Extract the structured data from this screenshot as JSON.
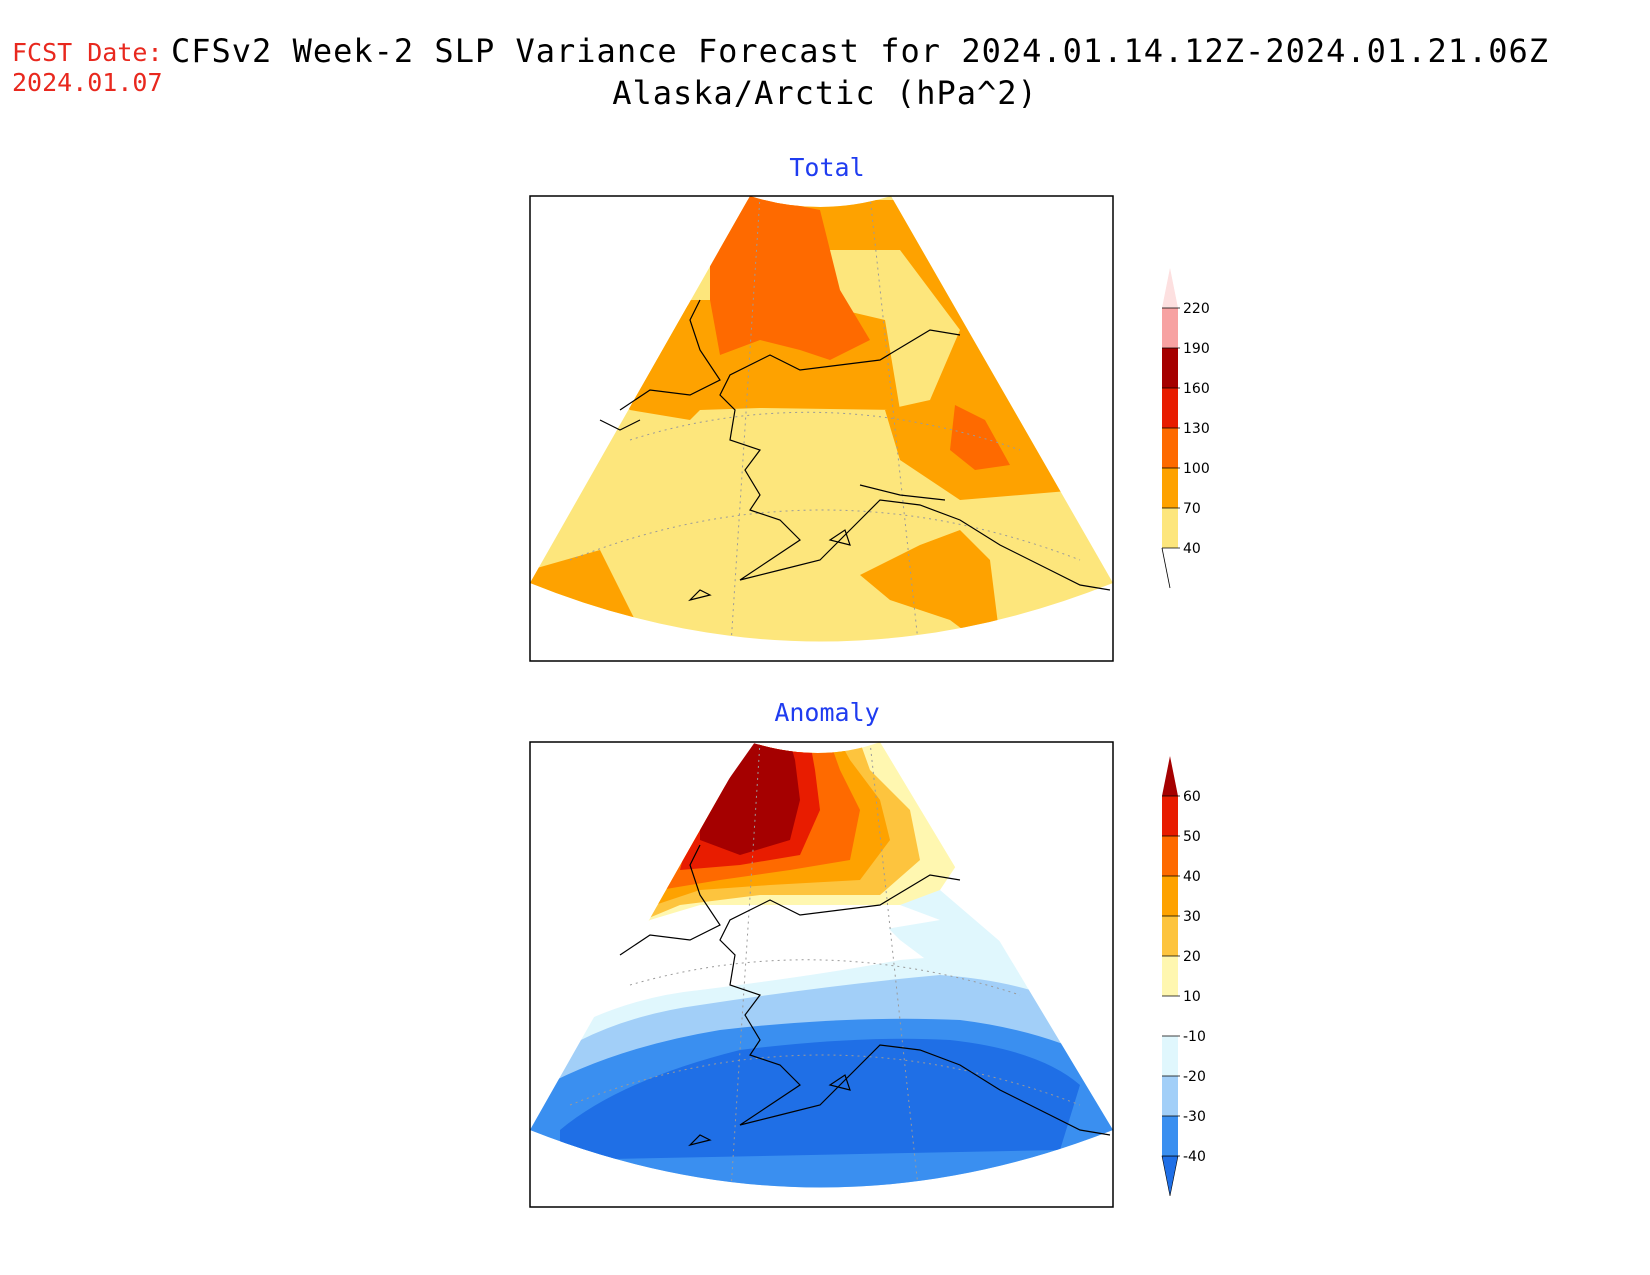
{
  "header": {
    "fcst_label": "FCST Date:",
    "fcst_date": "2024.01.07",
    "title": "CFSv2 Week-2 SLP Variance Forecast for 2024.01.14.12Z-2024.01.21.06Z",
    "subtitle": "Alaska/Arctic (hPa^2)"
  },
  "panels": [
    {
      "title": "Total",
      "colorbar": {
        "levels": [
          "40",
          "70",
          "100",
          "130",
          "160",
          "190",
          "220"
        ],
        "colors": [
          "#fde67c",
          "#fea200",
          "#fe6a00",
          "#e81c00",
          "#a50000",
          "#f7a2a2",
          "#fde0e0"
        ]
      }
    },
    {
      "title": "Anomaly",
      "colorbar": {
        "levels": [
          "-40",
          "-30",
          "-20",
          "-10",
          "10",
          "20",
          "30",
          "40",
          "50",
          "60"
        ],
        "colors": [
          "#1f6fe6",
          "#3a8ff0",
          "#a2cff8",
          "#e0f7fd",
          "#ffffff",
          "#fff7b0",
          "#fdc43e",
          "#fea200",
          "#fe6a00",
          "#e81c00",
          "#a50000"
        ]
      }
    }
  ]
}
